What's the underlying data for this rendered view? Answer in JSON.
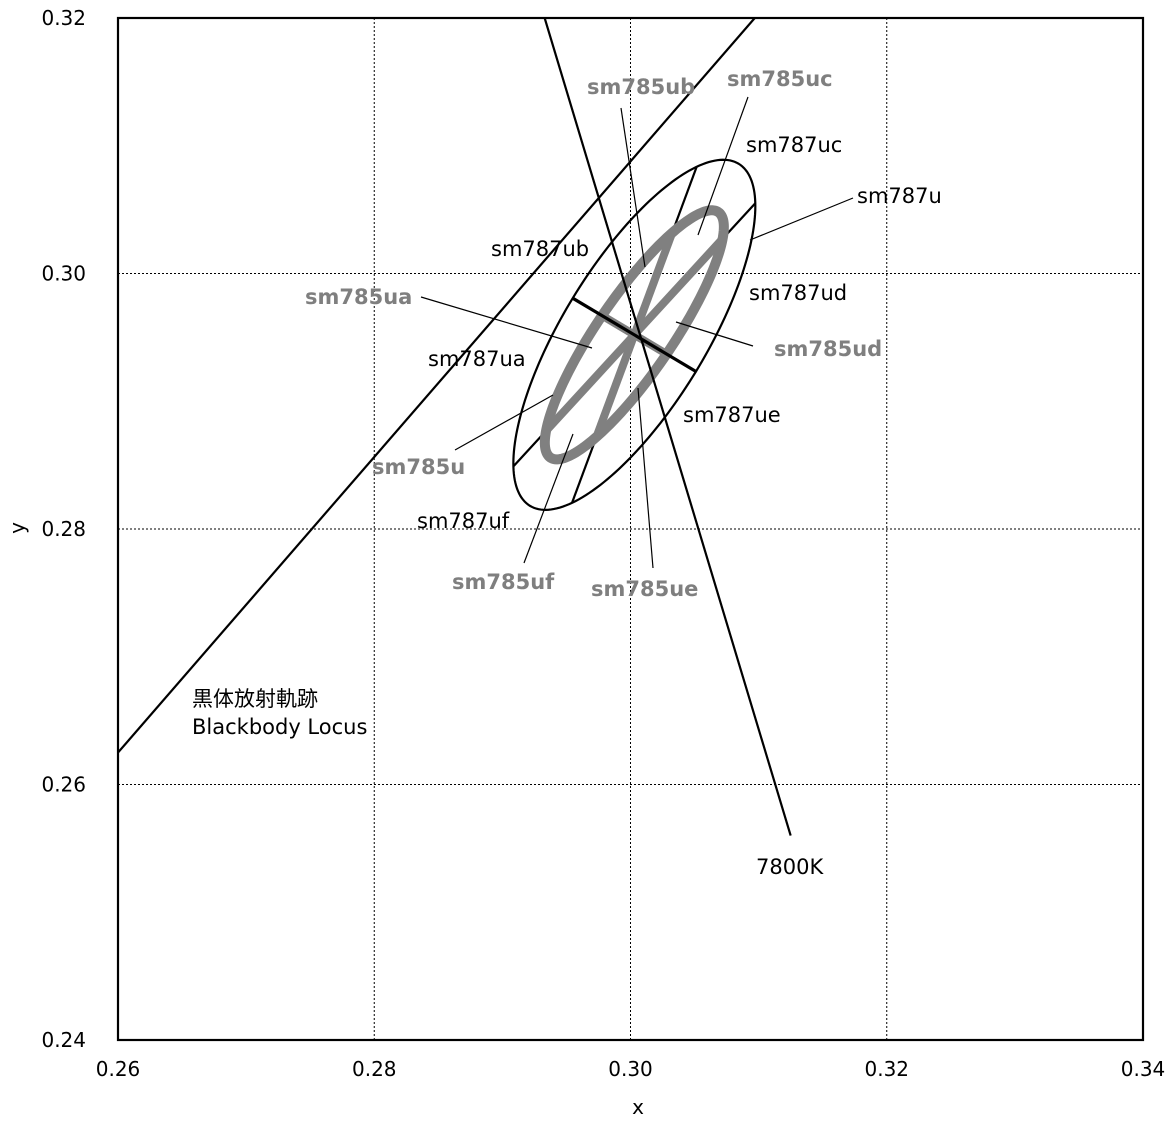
{
  "chart_data": {
    "type": "line",
    "xlabel": "x",
    "ylabel": "y",
    "xlim": [
      0.26,
      0.34
    ],
    "ylim": [
      0.24,
      0.32
    ],
    "xticks": [
      "0.26",
      "0.28",
      "0.30",
      "0.32",
      "0.34"
    ],
    "yticks": [
      "0.24",
      "0.26",
      "0.28",
      "0.30",
      "0.32"
    ],
    "grid": true,
    "series": [
      {
        "name": "Blackbody Locus",
        "name_ja": "黒体放射軌跡",
        "x": [
          0.26,
          0.3097
        ],
        "y": [
          0.2625,
          0.32
        ],
        "color": "#000000"
      },
      {
        "name": "7800K",
        "x": [
          0.2933,
          0.3125
        ],
        "y": [
          0.32,
          0.256
        ],
        "color": "#000000"
      }
    ],
    "ellipses": [
      {
        "name": "sm787u",
        "center": [
          0.3003,
          0.2952
        ],
        "semi_major": 0.01567,
        "semi_minor": 0.0056,
        "theta_deg": 58.7,
        "color": "#000000",
        "sectors": [
          "sm787ua",
          "sm787ub",
          "sm787uc",
          "sm787ud",
          "sm787ue",
          "sm787uf"
        ]
      },
      {
        "name": "sm785u",
        "center": [
          0.3003,
          0.2952
        ],
        "semi_major": 0.01163,
        "semi_minor": 0.00293,
        "theta_deg": 55.7,
        "color": "#808080",
        "sectors": [
          "sm785ua",
          "sm785ub",
          "sm785uc",
          "sm785ud",
          "sm785ue",
          "sm785uf"
        ]
      }
    ],
    "sector_dividers_deg": [
      47.5,
      69.7,
      149.2
    ]
  }
}
